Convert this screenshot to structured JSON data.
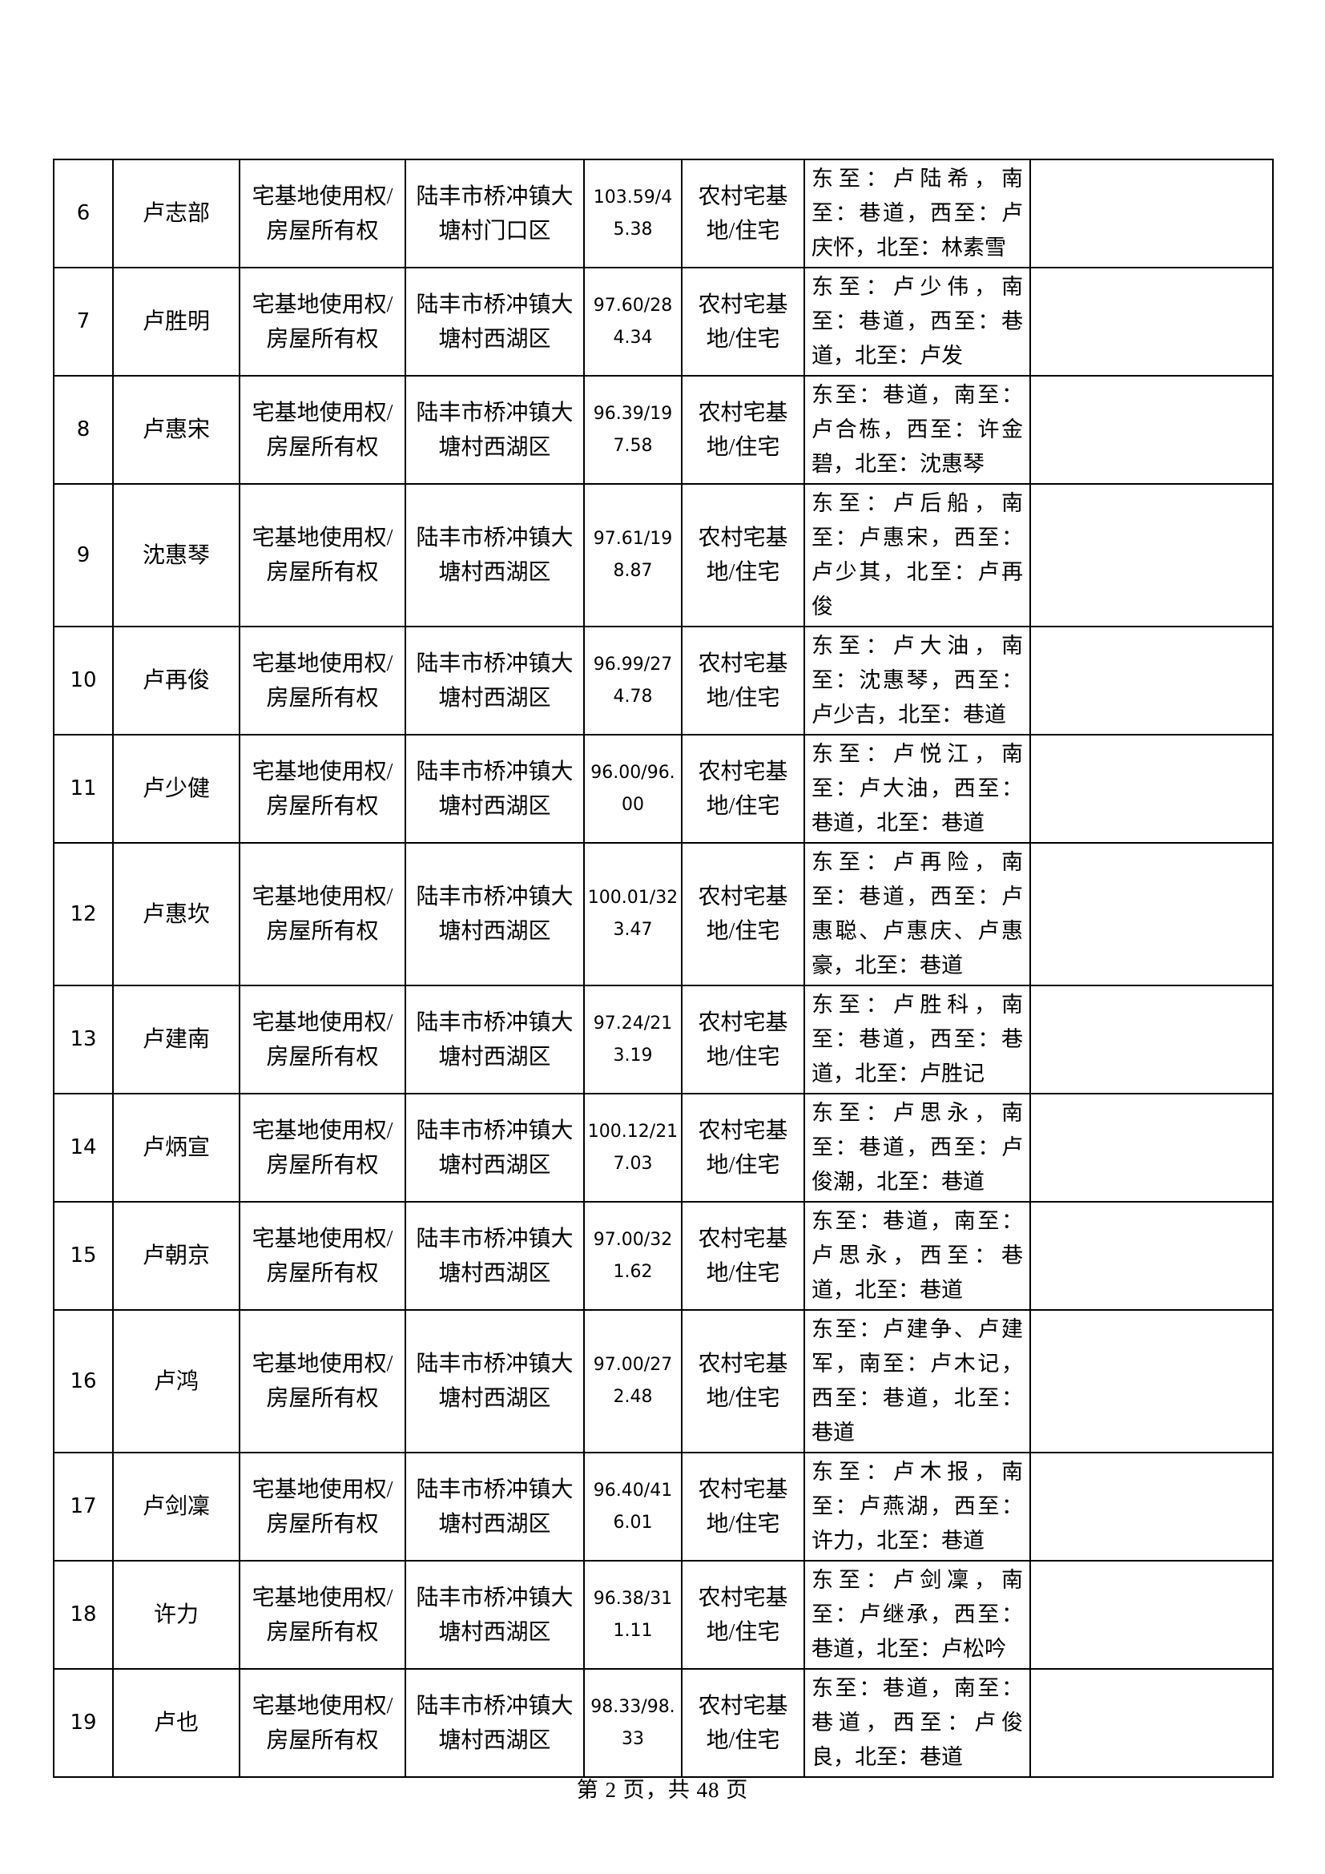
{
  "page": {
    "footer_text": "第 2 页，共 48 页"
  },
  "table": {
    "columns": [
      "seq",
      "name",
      "rights",
      "location",
      "area",
      "type",
      "boundary",
      "note"
    ],
    "rows": [
      {
        "seq": "6",
        "name": "卢志部",
        "rights": "宅基地使用权/房屋所有权",
        "location": "陆丰市桥冲镇大塘村门口区",
        "area": "103.59/45.38",
        "type": "农村宅基地/住宅",
        "boundary": "东至：卢陆希，南至：巷道，西至：卢庆怀，北至：林素雪",
        "note": ""
      },
      {
        "seq": "7",
        "name": "卢胜明",
        "rights": "宅基地使用权/房屋所有权",
        "location": "陆丰市桥冲镇大塘村西湖区",
        "area": "97.60/284.34",
        "type": "农村宅基地/住宅",
        "boundary": "东至：卢少伟，南至：巷道，西至：巷道，北至：卢发",
        "note": ""
      },
      {
        "seq": "8",
        "name": "卢惠宋",
        "rights": "宅基地使用权/房屋所有权",
        "location": "陆丰市桥冲镇大塘村西湖区",
        "area": "96.39/197.58",
        "type": "农村宅基地/住宅",
        "boundary": "东至：巷道，南至：卢合栋，西至：许金碧，北至：沈惠琴",
        "note": ""
      },
      {
        "seq": "9",
        "name": "沈惠琴",
        "rights": "宅基地使用权/房屋所有权",
        "location": "陆丰市桥冲镇大塘村西湖区",
        "area": "97.61/198.87",
        "type": "农村宅基地/住宅",
        "boundary": "东至：卢后船，南至：卢惠宋，西至：卢少其，北至：卢再俊",
        "note": ""
      },
      {
        "seq": "10",
        "name": "卢再俊",
        "rights": "宅基地使用权/房屋所有权",
        "location": "陆丰市桥冲镇大塘村西湖区",
        "area": "96.99/274.78",
        "type": "农村宅基地/住宅",
        "boundary": "东至：卢大油，南至：沈惠琴，西至：卢少吉，北至：巷道",
        "note": ""
      },
      {
        "seq": "11",
        "name": "卢少健",
        "rights": "宅基地使用权/房屋所有权",
        "location": "陆丰市桥冲镇大塘村西湖区",
        "area": "96.00/96.00",
        "type": "农村宅基地/住宅",
        "boundary": "东至：卢悦江，南至：卢大油，西至：巷道，北至：巷道",
        "note": ""
      },
      {
        "seq": "12",
        "name": "卢惠坎",
        "rights": "宅基地使用权/房屋所有权",
        "location": "陆丰市桥冲镇大塘村西湖区",
        "area": "100.01/323.47",
        "type": "农村宅基地/住宅",
        "boundary": "东至：卢再险，南至：巷道，西至：卢惠聪、卢惠庆、卢惠豪，北至：巷道",
        "note": ""
      },
      {
        "seq": "13",
        "name": "卢建南",
        "rights": "宅基地使用权/房屋所有权",
        "location": "陆丰市桥冲镇大塘村西湖区",
        "area": "97.24/213.19",
        "type": "农村宅基地/住宅",
        "boundary": "东至：卢胜科，南至：巷道，西至：巷道，北至：卢胜记",
        "note": ""
      },
      {
        "seq": "14",
        "name": "卢炳宣",
        "rights": "宅基地使用权/房屋所有权",
        "location": "陆丰市桥冲镇大塘村西湖区",
        "area": "100.12/217.03",
        "type": "农村宅基地/住宅",
        "boundary": "东至：卢思永，南至：巷道，西至：卢俊潮，北至：巷道",
        "note": ""
      },
      {
        "seq": "15",
        "name": "卢朝京",
        "rights": "宅基地使用权/房屋所有权",
        "location": "陆丰市桥冲镇大塘村西湖区",
        "area": "97.00/321.62",
        "type": "农村宅基地/住宅",
        "boundary": "东至：巷道，南至：卢思永，西至：巷道，北至：巷道",
        "note": ""
      },
      {
        "seq": "16",
        "name": "卢鸿",
        "rights": "宅基地使用权/房屋所有权",
        "location": "陆丰市桥冲镇大塘村西湖区",
        "area": "97.00/272.48",
        "type": "农村宅基地/住宅",
        "boundary": "东至：卢建争、卢建军，南至：卢木记，西至：巷道，北至：巷道",
        "note": ""
      },
      {
        "seq": "17",
        "name": "卢剑凜",
        "rights": "宅基地使用权/房屋所有权",
        "location": "陆丰市桥冲镇大塘村西湖区",
        "area": "96.40/416.01",
        "type": "农村宅基地/住宅",
        "boundary": "东至：卢木报，南至：卢燕湖，西至：许力，北至：巷道",
        "note": ""
      },
      {
        "seq": "18",
        "name": "许力",
        "rights": "宅基地使用权/房屋所有权",
        "location": "陆丰市桥冲镇大塘村西湖区",
        "area": "96.38/311.11",
        "type": "农村宅基地/住宅",
        "boundary": "东至：卢剑凜，南至：卢继承，西至：巷道，北至：卢松吟",
        "note": ""
      },
      {
        "seq": "19",
        "name": "卢也",
        "rights": "宅基地使用权/房屋所有权",
        "location": "陆丰市桥冲镇大塘村西湖区",
        "area": "98.33/98.33",
        "type": "农村宅基地/住宅",
        "boundary": "东至：巷道，南至：巷道，西至：卢俊良，北至：巷道",
        "note": ""
      }
    ]
  }
}
